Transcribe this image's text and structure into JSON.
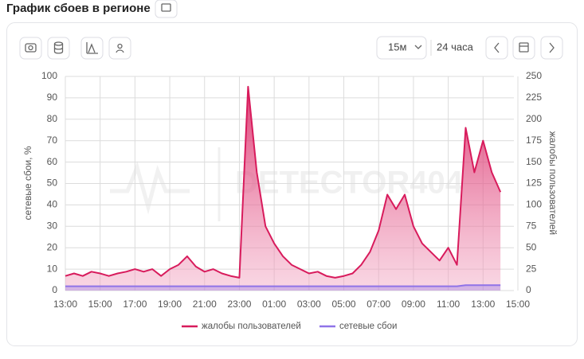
{
  "chart_data": {
    "type": "line",
    "title": "График сбоев в регионе",
    "controls": {
      "interval": "15м",
      "range": "24 часа"
    },
    "watermark": "DETECTOR404",
    "ylabel": "сетевые сбои, %",
    "y2label": "жалобы пользователей",
    "categories": [
      "13:00",
      "13:30",
      "14:00",
      "14:30",
      "15:00",
      "15:30",
      "16:00",
      "16:30",
      "17:00",
      "17:30",
      "18:00",
      "18:30",
      "19:00",
      "19:30",
      "20:00",
      "20:30",
      "21:00",
      "21:30",
      "22:00",
      "22:30",
      "23:00",
      "23:30",
      "00:00",
      "00:30",
      "01:00",
      "01:30",
      "02:00",
      "02:30",
      "03:00",
      "03:30",
      "04:00",
      "04:30",
      "05:00",
      "05:30",
      "06:00",
      "06:30",
      "07:00",
      "07:30",
      "08:00",
      "08:30",
      "09:00",
      "09:30",
      "10:00",
      "10:30",
      "11:00",
      "11:30",
      "12:00",
      "12:30",
      "13:00",
      "13:30",
      "14:00",
      "14:30",
      "15:00"
    ],
    "series": [
      {
        "name": "жалобы пользователей",
        "color": "#d81b5c",
        "axis": "y2",
        "values": [
          17,
          20,
          17,
          22,
          20,
          17,
          20,
          22,
          25,
          22,
          25,
          17,
          25,
          30,
          40,
          28,
          22,
          25,
          20,
          17,
          15,
          238,
          138,
          75,
          55,
          40,
          30,
          25,
          20,
          22,
          17,
          15,
          17,
          20,
          30,
          45,
          70,
          112,
          95,
          112,
          75,
          55,
          45,
          35,
          50,
          30,
          190,
          138,
          175,
          138,
          115,
          null,
          null
        ]
      },
      {
        "name": "сетевые сбои",
        "color": "#8f73e8",
        "values": [
          2,
          2,
          2,
          2,
          2,
          2,
          2,
          2,
          2,
          2,
          2,
          2,
          2,
          2,
          2,
          2,
          2,
          2,
          2,
          2,
          2,
          2,
          2,
          2,
          2,
          2,
          2,
          2,
          2,
          2,
          2,
          2,
          2,
          2,
          2,
          2,
          2,
          2,
          2,
          2,
          2,
          2,
          2,
          2,
          2,
          2,
          2.5,
          2.5,
          2.5,
          2.5,
          2.5,
          null,
          null
        ]
      }
    ],
    "ylim": [
      0,
      100
    ],
    "yticks": [
      0,
      10,
      20,
      30,
      40,
      50,
      60,
      70,
      80,
      90,
      100
    ],
    "y2lim": [
      0,
      250
    ],
    "y2ticks": [
      0,
      25,
      50,
      75,
      100,
      125,
      150,
      175,
      200,
      225,
      250
    ],
    "grid": true
  }
}
